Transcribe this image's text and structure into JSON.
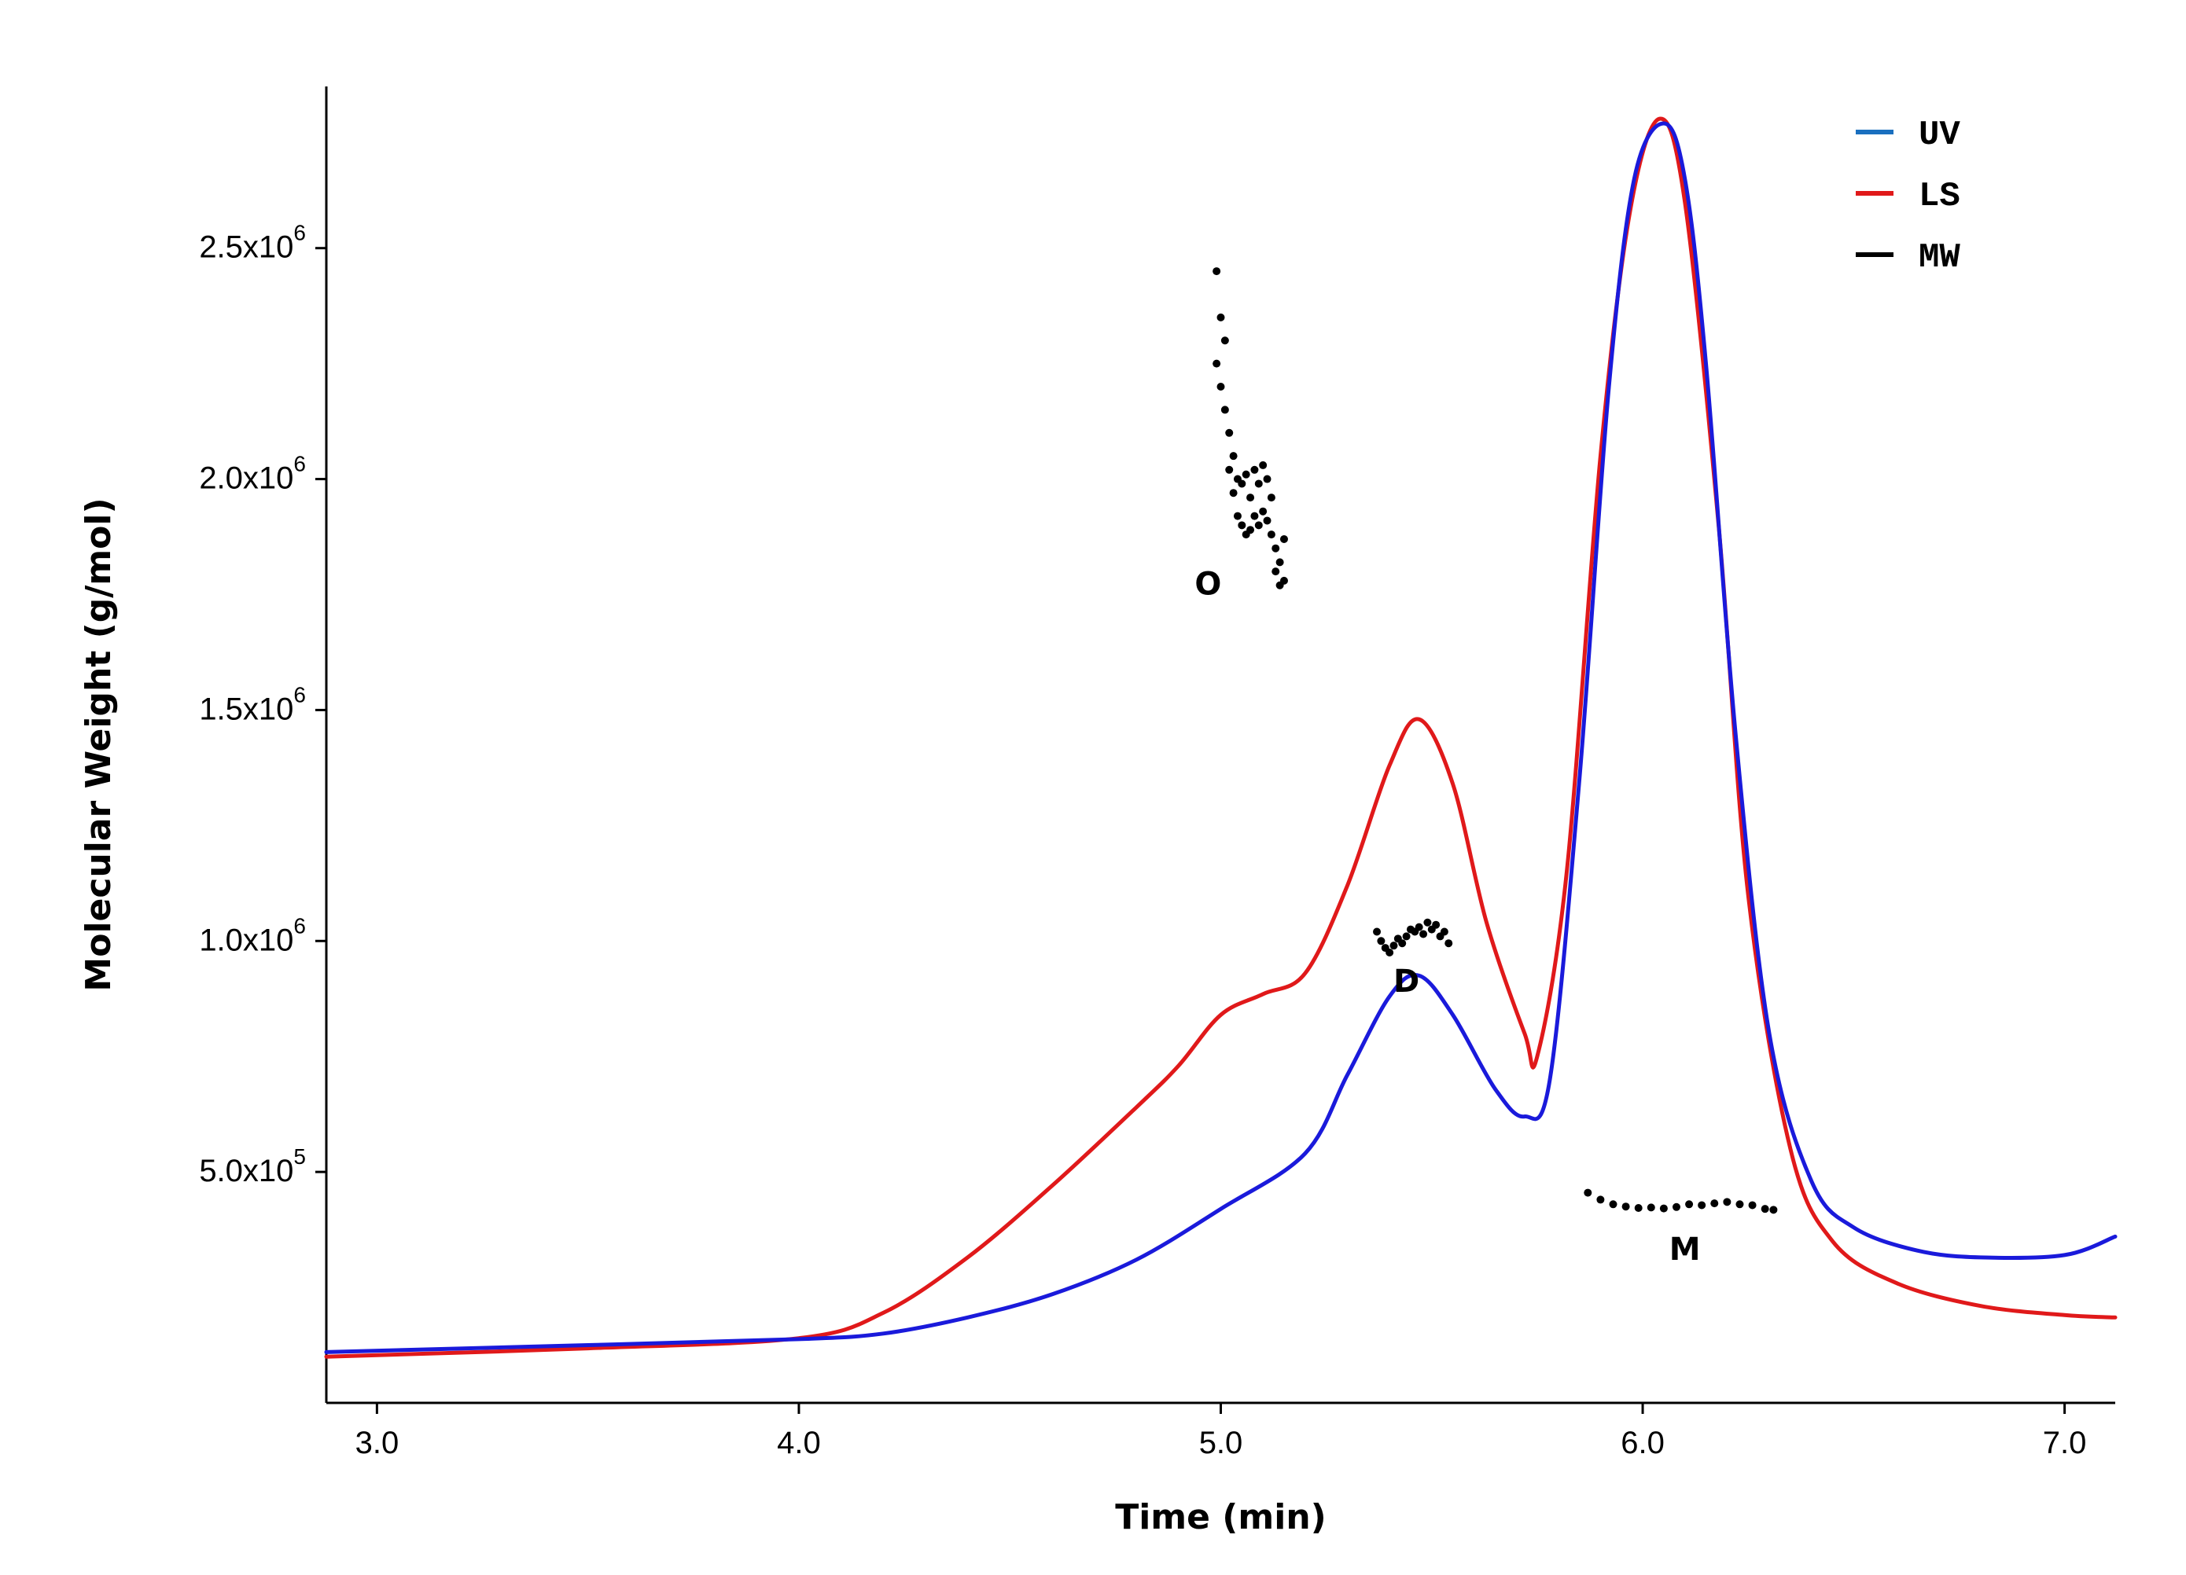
{
  "chart_data": {
    "type": "line",
    "title": "",
    "xlabel": "Time (min)",
    "ylabel": "Molecular Weight (g/mol)",
    "xlim": [
      2.88,
      7.12
    ],
    "ylim": [
      0,
      2850000.0
    ],
    "grid": false,
    "legend_position": "top-right",
    "x_ticks": [
      {
        "value": 3.0,
        "label": "3.0"
      },
      {
        "value": 4.0,
        "label": "4.0"
      },
      {
        "value": 5.0,
        "label": "5.0"
      },
      {
        "value": 6.0,
        "label": "6.0"
      },
      {
        "value": 7.0,
        "label": "7.0"
      }
    ],
    "y_ticks": [
      {
        "value": 500000,
        "base": "5.0x10",
        "exp": "5"
      },
      {
        "value": 1000000,
        "base": "1.0x10",
        "exp": "6"
      },
      {
        "value": 1500000,
        "base": "1.5x10",
        "exp": "6"
      },
      {
        "value": 2000000,
        "base": "2.0x10",
        "exp": "6"
      },
      {
        "value": 2500000,
        "base": "2.5x10",
        "exp": "6"
      }
    ],
    "series": [
      {
        "name": "UV",
        "legend_color": "#1a6fbf",
        "line_color": "#1a1adb",
        "kind": "line",
        "x": [
          2.88,
          3.5,
          4.0,
          4.2,
          4.4,
          4.6,
          4.8,
          5.0,
          5.2,
          5.3,
          5.4,
          5.47,
          5.55,
          5.65,
          5.72,
          5.78,
          5.85,
          5.92,
          5.98,
          6.05,
          6.1,
          6.15,
          6.22,
          6.3,
          6.4,
          6.5,
          6.65,
          6.8,
          7.0,
          7.12
        ],
        "y": [
          110000,
          125000,
          138000,
          150000,
          185000,
          235000,
          310000,
          420000,
          540000,
          710000,
          880000,
          925000,
          840000,
          680000,
          620000,
          700000,
          1350000,
          2200000,
          2650000,
          2770000,
          2650000,
          2250000,
          1450000,
          800000,
          480000,
          380000,
          330000,
          315000,
          320000,
          360000
        ]
      },
      {
        "name": "LS",
        "legend_color": "#e0191a",
        "line_color": "#e0191a",
        "kind": "line",
        "x": [
          2.88,
          3.5,
          4.0,
          4.2,
          4.4,
          4.6,
          4.8,
          4.9,
          5.0,
          5.1,
          5.2,
          5.3,
          5.4,
          5.47,
          5.55,
          5.63,
          5.72,
          5.75,
          5.82,
          5.9,
          5.97,
          6.04,
          6.1,
          6.18,
          6.25,
          6.35,
          6.45,
          6.6,
          6.8,
          7.0,
          7.12
        ],
        "y": [
          100000,
          118000,
          140000,
          195000,
          315000,
          470000,
          640000,
          730000,
          840000,
          885000,
          930000,
          1120000,
          1380000,
          1480000,
          1340000,
          1040000,
          800000,
          750000,
          1150000,
          2050000,
          2580000,
          2780000,
          2600000,
          1900000,
          1100000,
          550000,
          350000,
          260000,
          210000,
          190000,
          185000
        ]
      },
      {
        "name": "MW",
        "legend_color": "#000000",
        "line_color": "#000000",
        "kind": "scatter",
        "x": [
          4.99,
          4.99,
          5.0,
          5.0,
          5.01,
          5.01,
          5.02,
          5.02,
          5.03,
          5.03,
          5.04,
          5.04,
          5.05,
          5.05,
          5.06,
          5.06,
          5.07,
          5.07,
          5.08,
          5.08,
          5.09,
          5.09,
          5.1,
          5.1,
          5.11,
          5.11,
          5.12,
          5.12,
          5.13,
          5.13,
          5.14,
          5.14,
          5.15,
          5.15,
          5.37,
          5.38,
          5.39,
          5.4,
          5.41,
          5.42,
          5.43,
          5.44,
          5.45,
          5.46,
          5.47,
          5.48,
          5.49,
          5.5,
          5.51,
          5.52,
          5.53,
          5.54,
          5.87,
          5.9,
          5.93,
          5.96,
          5.99,
          6.02,
          6.05,
          6.08,
          6.11,
          6.14,
          6.17,
          6.2,
          6.23,
          6.26,
          6.29,
          6.31
        ],
        "y": [
          2450000,
          2250000,
          2350000,
          2200000,
          2300000,
          2150000,
          2100000,
          2020000,
          2050000,
          1970000,
          2000000,
          1920000,
          1990000,
          1900000,
          2010000,
          1880000,
          1960000,
          1890000,
          2020000,
          1920000,
          1990000,
          1900000,
          2030000,
          1930000,
          2000000,
          1910000,
          1960000,
          1880000,
          1850000,
          1800000,
          1820000,
          1770000,
          1870000,
          1780000,
          1020000,
          1000000,
          985000,
          975000,
          990000,
          1005000,
          995000,
          1010000,
          1025000,
          1020000,
          1030000,
          1015000,
          1040000,
          1025000,
          1035000,
          1010000,
          1020000,
          995000,
          455000,
          440000,
          430000,
          425000,
          422000,
          423000,
          421000,
          424000,
          430000,
          428000,
          432000,
          435000,
          430000,
          428000,
          420000,
          418000
        ]
      }
    ],
    "annotations": [
      {
        "text": "O",
        "x": 4.97,
        "y": 1750000
      },
      {
        "text": "D",
        "x": 5.44,
        "y": 890000
      },
      {
        "text": "M",
        "x": 6.1,
        "y": 310000
      }
    ]
  }
}
